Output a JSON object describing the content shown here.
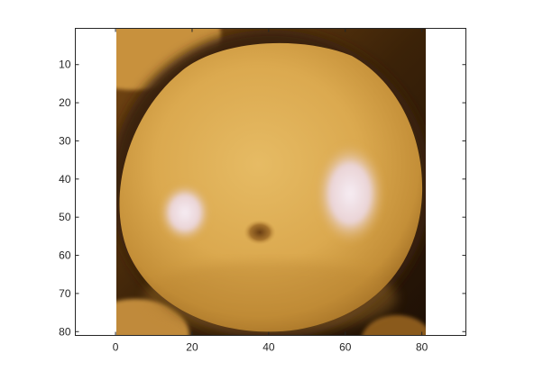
{
  "figure": {
    "background": "#ffffff",
    "axes_color": "#262626"
  },
  "image": {
    "description_icon": "orange-fruit-photo",
    "palette": {
      "skin": "#d9a84e",
      "skin_light": "#e4b963",
      "skin_shadow": "#b07c2e",
      "edge_dark": "#3a2208",
      "background_dark": "#2a1606",
      "highlight": "#f3e6ef",
      "navel": "#7a4a18"
    }
  },
  "x_axis": {
    "limits": [
      -10.5,
      91.5
    ],
    "ticks": [
      0,
      20,
      40,
      60,
      80
    ],
    "tick_labels": [
      "0",
      "20",
      "40",
      "60",
      "80"
    ]
  },
  "y_axis": {
    "limits": [
      0.5,
      81
    ],
    "direction": "reverse",
    "ticks": [
      10,
      20,
      30,
      40,
      50,
      60,
      70,
      80
    ],
    "tick_labels": [
      "10",
      "20",
      "30",
      "40",
      "50",
      "60",
      "70",
      "80"
    ]
  }
}
